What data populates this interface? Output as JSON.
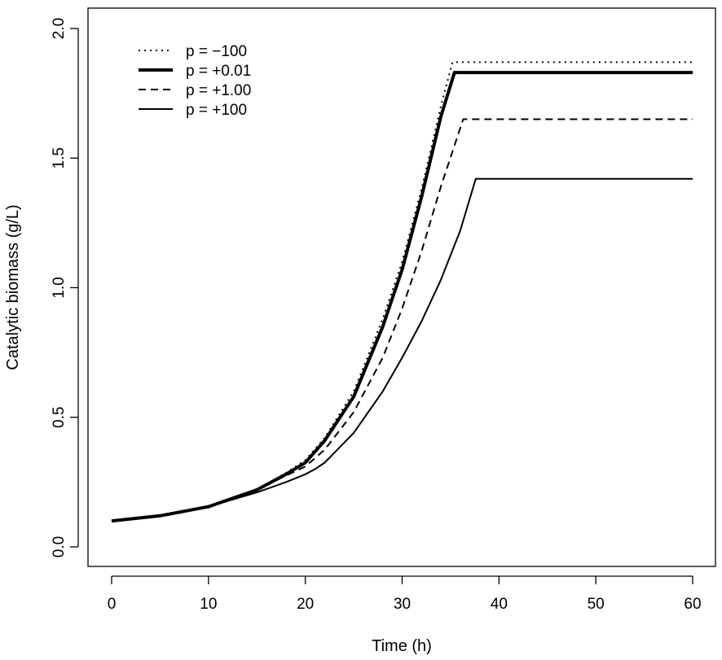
{
  "chart_data": {
    "type": "line",
    "title": "",
    "xlabel": "Time (h)",
    "ylabel": "Catalytic biomass (g/L)",
    "xlim": [
      0,
      60
    ],
    "ylim": [
      0,
      2.0
    ],
    "xticks": [
      0,
      10,
      20,
      30,
      40,
      50,
      60
    ],
    "yticks": [
      0.0,
      0.5,
      1.0,
      1.5,
      2.0
    ],
    "xtick_labels": [
      "0",
      "10",
      "20",
      "30",
      "40",
      "50",
      "60"
    ],
    "ytick_labels": [
      "0.0",
      "0.5",
      "1.0",
      "1.5",
      "2.0"
    ],
    "grid": false,
    "legend_position": "top-left",
    "series": [
      {
        "name": "p = −100",
        "style": "dotted",
        "color": "#000000",
        "x": [
          0,
          5,
          10,
          15,
          18,
          20,
          22,
          25,
          28,
          30,
          32,
          34,
          35.2,
          40,
          50,
          60
        ],
        "y": [
          0.1,
          0.12,
          0.155,
          0.22,
          0.285,
          0.335,
          0.42,
          0.6,
          0.88,
          1.1,
          1.38,
          1.7,
          1.87,
          1.87,
          1.87,
          1.87
        ]
      },
      {
        "name": "p = +0.01",
        "style": "thick",
        "color": "#000000",
        "x": [
          0,
          5,
          10,
          15,
          18,
          20,
          22,
          25,
          28,
          30,
          32,
          34,
          35.4,
          40,
          50,
          60
        ],
        "y": [
          0.1,
          0.12,
          0.155,
          0.22,
          0.28,
          0.325,
          0.41,
          0.58,
          0.85,
          1.07,
          1.35,
          1.66,
          1.83,
          1.83,
          1.83,
          1.83
        ]
      },
      {
        "name": "p = +1.00",
        "style": "dashed",
        "color": "#000000",
        "x": [
          0,
          5,
          10,
          15,
          18,
          20,
          22,
          25,
          28,
          30,
          32,
          34,
          36.3,
          40,
          50,
          60
        ],
        "y": [
          0.1,
          0.12,
          0.155,
          0.22,
          0.275,
          0.31,
          0.375,
          0.52,
          0.73,
          0.92,
          1.14,
          1.39,
          1.65,
          1.65,
          1.65,
          1.65
        ]
      },
      {
        "name": "p = +100",
        "style": "solid",
        "color": "#000000",
        "x": [
          0,
          5,
          10,
          15,
          18,
          20,
          21,
          22,
          25,
          28,
          30,
          32,
          34,
          36,
          37.6,
          40,
          50,
          60
        ],
        "y": [
          0.1,
          0.12,
          0.155,
          0.21,
          0.25,
          0.28,
          0.3,
          0.325,
          0.44,
          0.6,
          0.73,
          0.87,
          1.03,
          1.22,
          1.42,
          1.42,
          1.42,
          1.42
        ]
      }
    ]
  }
}
